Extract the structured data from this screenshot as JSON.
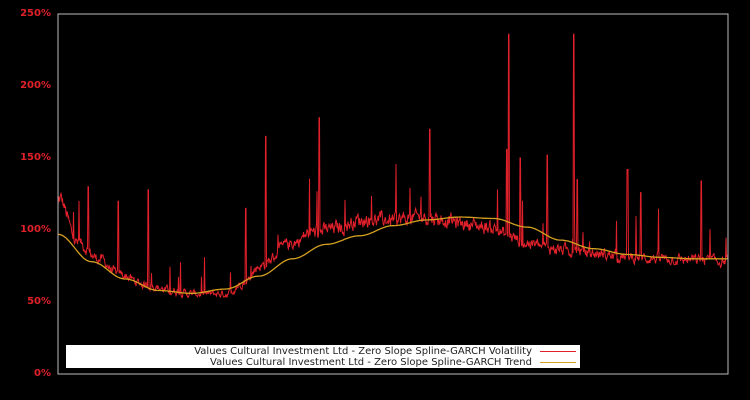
{
  "chart_data": {
    "type": "line",
    "title": "",
    "xlabel": "",
    "ylabel": "",
    "ylim": [
      0,
      250
    ],
    "yticks": [
      "0%",
      "50%",
      "100%",
      "150%",
      "200%",
      "250%"
    ],
    "grid": false,
    "legend_position": "lower center",
    "background": "#000000",
    "axis_label_color": "#e0202a",
    "series": [
      {
        "name": "Values Cultural Investment Ltd - Zero Slope Spline-GARCH Volatility",
        "color": "#e0202a",
        "description": "Noisy volatility series with spikes; approx trend-following with spikes up to ~236%",
        "x_frac": [
          0,
          0.03,
          0.06,
          0.09,
          0.13,
          0.17,
          0.2,
          0.25,
          0.28,
          0.3,
          0.35,
          0.38,
          0.42,
          0.45,
          0.5,
          0.55,
          0.58,
          0.6,
          0.65,
          0.67,
          0.7,
          0.73,
          0.77,
          0.8,
          0.85,
          0.9,
          0.95,
          1.0
        ],
        "values": [
          115,
          85,
          75,
          65,
          58,
          54,
          52,
          52,
          60,
          70,
          85,
          92,
          95,
          100,
          100,
          102,
          100,
          98,
          95,
          90,
          85,
          82,
          80,
          78,
          76,
          75,
          74,
          73
        ],
        "spikes": [
          {
            "x_frac": 0.045,
            "value": 130
          },
          {
            "x_frac": 0.09,
            "value": 120
          },
          {
            "x_frac": 0.135,
            "value": 128
          },
          {
            "x_frac": 0.28,
            "value": 115
          },
          {
            "x_frac": 0.31,
            "value": 165
          },
          {
            "x_frac": 0.39,
            "value": 178
          },
          {
            "x_frac": 0.555,
            "value": 170
          },
          {
            "x_frac": 0.67,
            "value": 156
          },
          {
            "x_frac": 0.673,
            "value": 236
          },
          {
            "x_frac": 0.69,
            "value": 150
          },
          {
            "x_frac": 0.73,
            "value": 152
          },
          {
            "x_frac": 0.77,
            "value": 236
          },
          {
            "x_frac": 0.775,
            "value": 135
          },
          {
            "x_frac": 0.85,
            "value": 142
          },
          {
            "x_frac": 0.87,
            "value": 126
          },
          {
            "x_frac": 0.96,
            "value": 134
          }
        ]
      },
      {
        "name": "Values Cultural Investment Ltd - Zero Slope Spline-GARCH Trend",
        "color": "#d4a020",
        "x_frac": [
          0,
          0.05,
          0.1,
          0.15,
          0.2,
          0.25,
          0.3,
          0.35,
          0.4,
          0.45,
          0.5,
          0.55,
          0.6,
          0.65,
          0.7,
          0.75,
          0.8,
          0.85,
          0.9,
          0.95,
          1.0
        ],
        "values": [
          97,
          78,
          66,
          58,
          56,
          59,
          68,
          80,
          90,
          96,
          103,
          107,
          109,
          108,
          102,
          93,
          87,
          83,
          81,
          80,
          80
        ]
      }
    ]
  },
  "legend": {
    "items": [
      {
        "label": "Values Cultural Investment Ltd - Zero Slope Spline-GARCH Volatility",
        "color": "#e0202a"
      },
      {
        "label": "Values Cultural Investment Ltd - Zero Slope Spline-GARCH Trend",
        "color": "#d4a020"
      }
    ]
  }
}
